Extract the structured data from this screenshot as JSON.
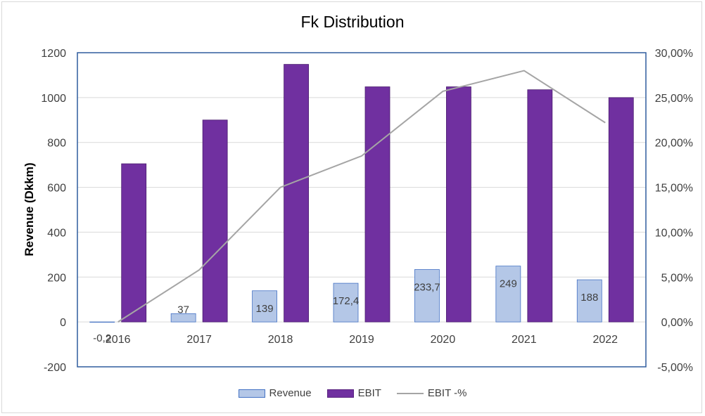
{
  "chart_data": {
    "type": "bar",
    "title": "Fk Distribution",
    "categories": [
      "2016",
      "2017",
      "2018",
      "2019",
      "2020",
      "2021",
      "2022"
    ],
    "series": [
      {
        "name": "Revenue",
        "axis": "left",
        "values": [
          -0.2,
          37,
          139,
          172.4,
          233.7,
          249,
          188
        ],
        "labels": [
          "-0,2",
          "37",
          "139",
          "172,4",
          "233,7",
          "249",
          "188"
        ],
        "color": "#b4c7e7",
        "border": "#4472c4"
      },
      {
        "name": "EBIT",
        "axis": "left",
        "values": [
          705,
          900,
          1148,
          1048,
          1048,
          1035,
          1000
        ],
        "color": "#7030a0"
      },
      {
        "name": "EBIT -%",
        "axis": "right",
        "type": "line",
        "values": [
          0.0,
          5.8,
          15.0,
          18.5,
          25.7,
          28.0,
          22.2
        ],
        "color": "#a5a5a5"
      }
    ],
    "ylabel": "Revenue (Dkkm)",
    "ylim": [
      -200,
      1200
    ],
    "yticks": [
      "1200",
      "1000",
      "800",
      "600",
      "400",
      "200",
      "0",
      "-200"
    ],
    "y2lim": [
      -5,
      30
    ],
    "y2ticks": [
      "30,00%",
      "25,00%",
      "20,00%",
      "15,00%",
      "10,00%",
      "5,00%",
      "0,00%",
      "-5,00%"
    ],
    "grid": true,
    "legend": "bottom"
  },
  "legend": {
    "revenue": "Revenue",
    "ebit": "EBIT",
    "ebit_pct": "EBIT -%"
  }
}
